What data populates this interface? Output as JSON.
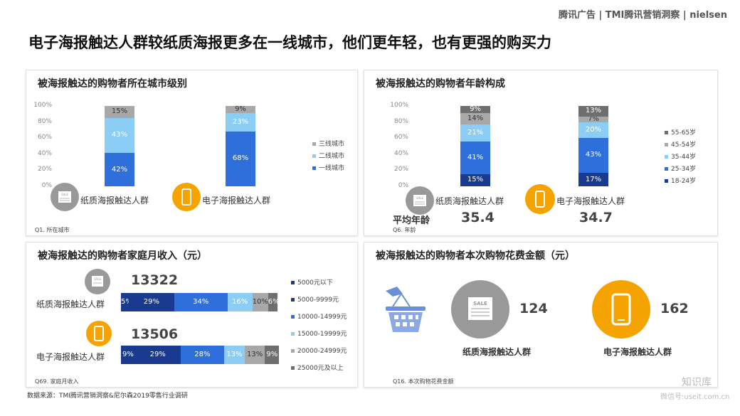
{
  "header": {
    "logo_text": "腾讯广告 | TMI腾讯营销洞察 | nielsen"
  },
  "main_title": "电子海报触达人群较纸质海报更多在一线城市，他们更年轻，也有更强的购买力",
  "colors": {
    "navy": "#1a3a8f",
    "blue": "#2f6fdc",
    "lightblue": "#8ccdf5",
    "gray": "#a8a8a8",
    "darkgray": "#6e6e6e",
    "grayish": "#8a8a8a",
    "orange": "#f5a300"
  },
  "groups": {
    "paper": "纸质海报触达人群",
    "electronic": "电子海报触达人群"
  },
  "panel1": {
    "title": "被海报触达的购物者所在城市级别",
    "note": "Q1. 所在城市"
  },
  "panel2": {
    "title": "被海报触达的购物者年龄构成",
    "note": "Q6. 年龄",
    "avg_label": "平均年龄",
    "avg_paper": "35.4",
    "avg_electronic": "34.7"
  },
  "panel3": {
    "title": "被海报触达的购物者家庭月收入（元）",
    "note": "Q69. 家庭月收入",
    "mean_paper": "13322",
    "mean_electronic": "13506"
  },
  "panel4": {
    "title": "被海报触达的购物者本次购物花费金额（元）",
    "note": "Q16. 本次购物花费金额",
    "value_paper": "124",
    "value_electronic": "162"
  },
  "footer": {
    "source": "数据来源：TMI腾讯营销洞察&尼尔森2019零售行业调研",
    "watermark1": "知识库",
    "watermark2": "微信号:useit.com.cn"
  },
  "chart_data": [
    {
      "type": "bar",
      "stacked": true,
      "categories": [
        "纸质海报触达人群",
        "电子海报触达人群"
      ],
      "ylim": [
        0,
        100
      ],
      "yticks": [
        "0%",
        "20%",
        "40%",
        "60%",
        "80%",
        "100%"
      ],
      "series": [
        {
          "name": "一线城市",
          "values": [
            42,
            68
          ],
          "labels": [
            "42%",
            "68%"
          ]
        },
        {
          "name": "二线城市",
          "values": [
            43,
            23
          ],
          "labels": [
            "43%",
            "23%"
          ]
        },
        {
          "name": "三线城市",
          "values": [
            15,
            9
          ],
          "labels": [
            "15%",
            "9%"
          ]
        }
      ],
      "legend": "right"
    },
    {
      "type": "bar",
      "stacked": true,
      "categories": [
        "纸质海报触达人群",
        "电子海报触达人群"
      ],
      "ylim": [
        0,
        100
      ],
      "yticks": [
        "0%",
        "20%",
        "40%",
        "60%",
        "80%",
        "100%"
      ],
      "series": [
        {
          "name": "18-24岁",
          "values": [
            15,
            17
          ],
          "labels": [
            "15%",
            "17%"
          ]
        },
        {
          "name": "25-34岁",
          "values": [
            41,
            43
          ],
          "labels": [
            "41%",
            "43%"
          ]
        },
        {
          "name": "35-44岁",
          "values": [
            21,
            20
          ],
          "labels": [
            "21%",
            "20%"
          ]
        },
        {
          "name": "45-54岁",
          "values": [
            14,
            7
          ],
          "labels": [
            "14%",
            "7%"
          ]
        },
        {
          "name": "55-65岁",
          "values": [
            9,
            13
          ],
          "labels": [
            "9%",
            "13%"
          ]
        }
      ],
      "legend": "right"
    },
    {
      "type": "bar",
      "stacked": true,
      "orientation": "horizontal",
      "categories": [
        "纸质海报触达人群",
        "电子海报触达人群"
      ],
      "series": [
        {
          "name": "5000元以下",
          "values": [
            5,
            9
          ],
          "labels": [
            "5%",
            "9%"
          ]
        },
        {
          "name": "5000-9999元",
          "values": [
            29,
            29
          ],
          "labels": [
            "29%",
            "29%"
          ]
        },
        {
          "name": "10000-14999元",
          "values": [
            34,
            28
          ],
          "labels": [
            "34%",
            "28%"
          ]
        },
        {
          "name": "15000-19999元",
          "values": [
            16,
            13
          ],
          "labels": [
            "16%",
            "13%"
          ]
        },
        {
          "name": "20000-24999元",
          "values": [
            10,
            13
          ],
          "labels": [
            "10%",
            "13%"
          ]
        },
        {
          "name": "25000元及以上",
          "values": [
            6,
            9
          ],
          "labels": [
            "6%",
            "9%"
          ]
        }
      ],
      "legend": "right"
    }
  ]
}
